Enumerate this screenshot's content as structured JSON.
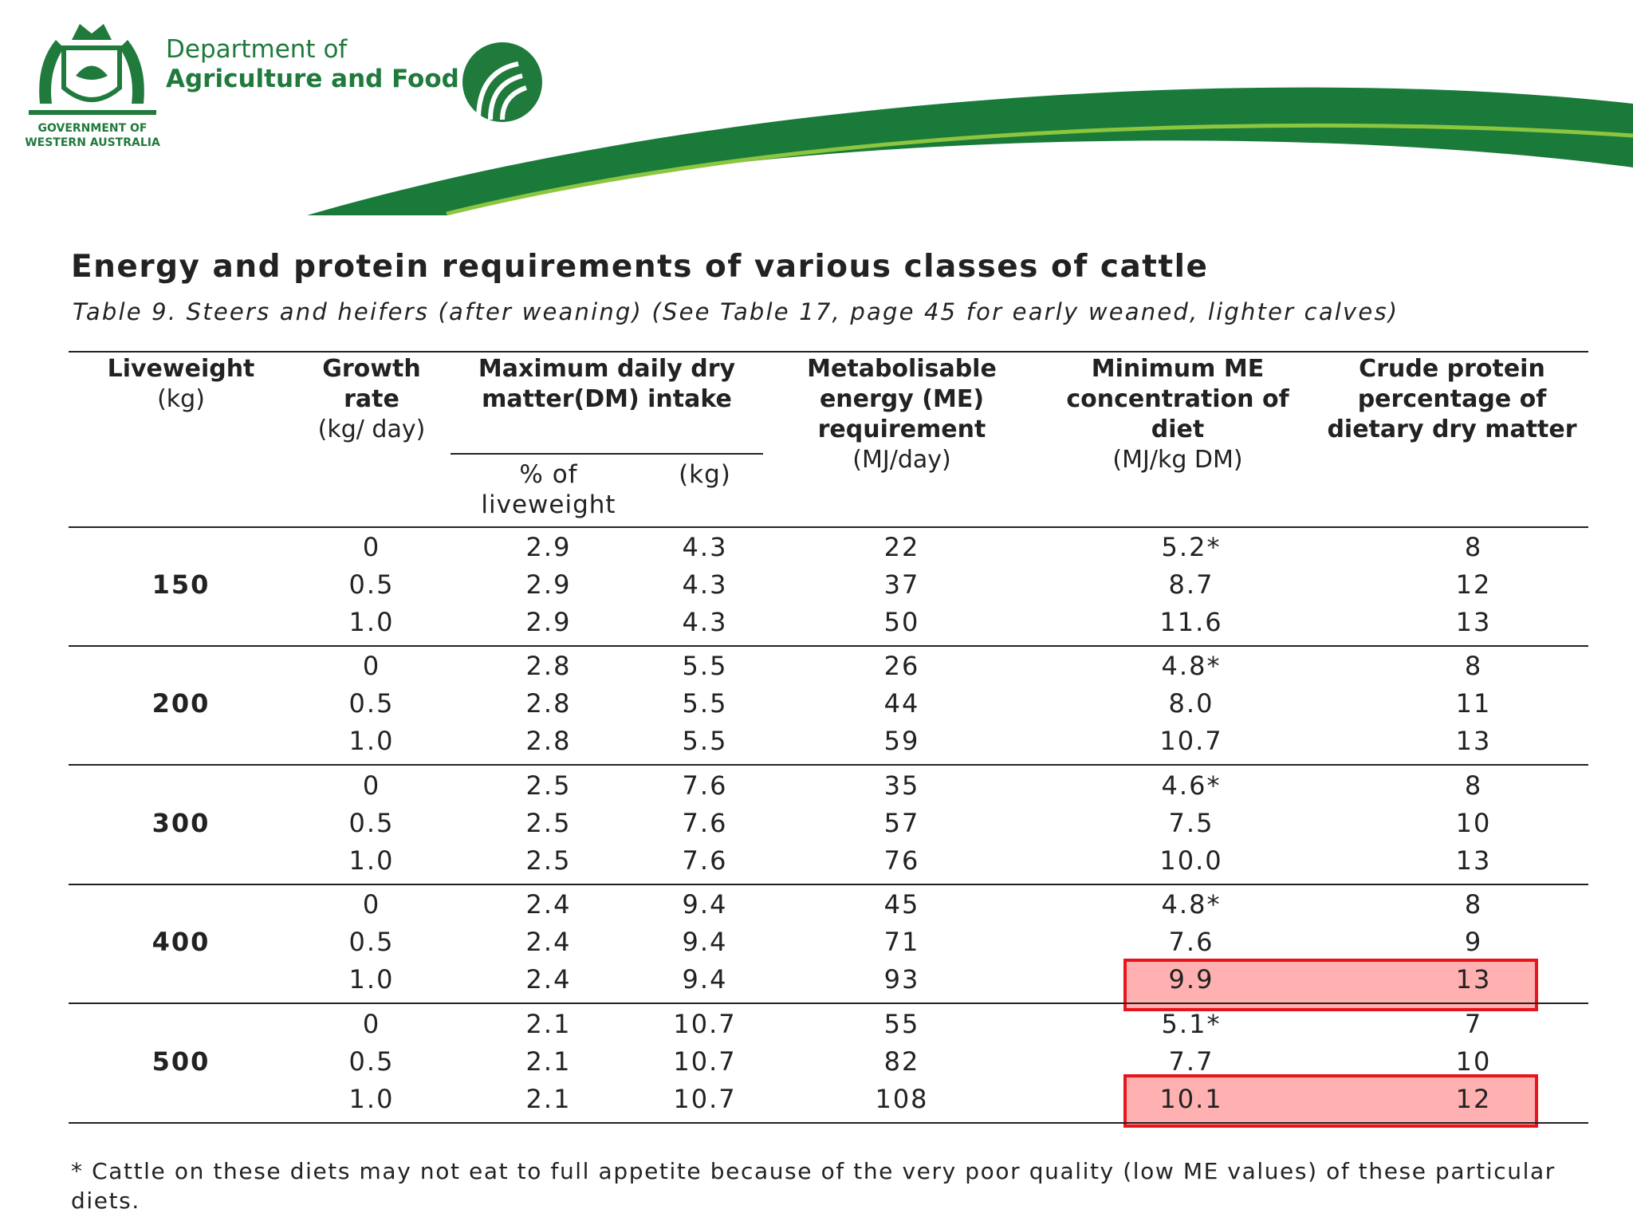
{
  "header": {
    "department": [
      "Department of",
      "Agriculture and Food"
    ],
    "government": [
      "GOVERNMENT OF",
      "WESTERN AUSTRALIA"
    ]
  },
  "title": "Energy and protein requirements of various classes of cattle",
  "caption": "Table 9. Steers and heifers (after weaning) (See Table 17, page 45 for early weaned, lighter calves)",
  "table": {
    "columns": [
      {
        "name": "Liveweight",
        "unit": "(kg)"
      },
      {
        "name": "Growth rate",
        "unit": "(kg/ day)"
      },
      {
        "name": "Maximum daily dry matter(DM) intake"
      },
      {
        "name": "Metabolisable energy (ME) requirement",
        "unit": "(MJ/day)"
      },
      {
        "name": "Minimum ME concentration of diet",
        "unit": "(MJ/kg DM)"
      },
      {
        "name": "Crude protein percentage of dietary dry matter"
      }
    ],
    "subcolumns": [
      "% of liveweight",
      "(kg)"
    ],
    "groups": [
      {
        "liveweight": "150",
        "rows": [
          [
            "0",
            "2.9",
            "4.3",
            "22",
            "5.2*",
            "8"
          ],
          [
            "0.5",
            "2.9",
            "4.3",
            "37",
            "8.7",
            "12"
          ],
          [
            "1.0",
            "2.9",
            "4.3",
            "50",
            "11.6",
            "13"
          ]
        ]
      },
      {
        "liveweight": "200",
        "rows": [
          [
            "0",
            "2.8",
            "5.5",
            "26",
            "4.8*",
            "8"
          ],
          [
            "0.5",
            "2.8",
            "5.5",
            "44",
            "8.0",
            "11"
          ],
          [
            "1.0",
            "2.8",
            "5.5",
            "59",
            "10.7",
            "13"
          ]
        ]
      },
      {
        "liveweight": "300",
        "rows": [
          [
            "0",
            "2.5",
            "7.6",
            "35",
            "4.6*",
            "8"
          ],
          [
            "0.5",
            "2.5",
            "7.6",
            "57",
            "7.5",
            "10"
          ],
          [
            "1.0",
            "2.5",
            "7.6",
            "76",
            "10.0",
            "13"
          ]
        ]
      },
      {
        "liveweight": "400",
        "rows": [
          [
            "0",
            "2.4",
            "9.4",
            "45",
            "4.8*",
            "8"
          ],
          [
            "0.5",
            "2.4",
            "9.4",
            "71",
            "7.6",
            "9"
          ],
          [
            "1.0",
            "2.4",
            "9.4",
            "93",
            "9.9",
            "13"
          ]
        ]
      },
      {
        "liveweight": "500",
        "rows": [
          [
            "0",
            "2.1",
            "10.7",
            "55",
            "5.1*",
            "7"
          ],
          [
            "0.5",
            "2.1",
            "10.7",
            "82",
            "7.7",
            "10"
          ],
          [
            "1.0",
            "2.1",
            "10.7",
            "108",
            "10.1",
            "12"
          ]
        ]
      }
    ]
  },
  "footnote": "* Cattle on these diets may not eat to full appetite because of the very poor quality (low ME values) of these particular diets."
}
